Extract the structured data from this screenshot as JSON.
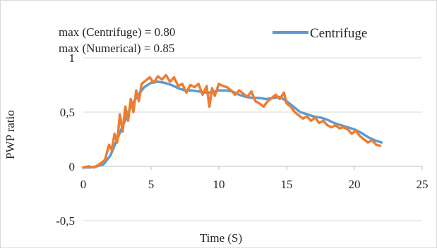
{
  "chart_data": {
    "type": "line",
    "title": "",
    "xlabel": "Time (S)",
    "ylabel": "PWP  ratio",
    "xlim": [
      0,
      25
    ],
    "ylim": [
      -0.5,
      1
    ],
    "xticks": [
      {
        "value": 0,
        "label": "0"
      },
      {
        "value": 5,
        "label": "5"
      },
      {
        "value": 10,
        "label": "10"
      },
      {
        "value": 15,
        "label": "15"
      },
      {
        "value": 20,
        "label": "20"
      },
      {
        "value": 25,
        "label": "25"
      }
    ],
    "yticks": [
      {
        "value": -0.5,
        "label": "-0,5"
      },
      {
        "value": 0,
        "label": "0"
      },
      {
        "value": 0.5,
        "label": "0,5"
      },
      {
        "value": 1,
        "label": "1"
      }
    ],
    "grid": {
      "horizontal": true,
      "vertical": false
    },
    "legend": {
      "position": "top-right",
      "entries": [
        "Centrifuge"
      ]
    },
    "annotations": [
      "max (Centrifuge) = 0.80",
      "max (Numerical) = 0.85"
    ],
    "series": [
      {
        "name": "Centrifuge",
        "color": "#5b9bd5",
        "x": [
          0,
          0.5,
          1,
          1.5,
          2,
          2.5,
          3,
          3.5,
          4,
          4.5,
          5,
          5.5,
          6,
          6.5,
          7,
          7.5,
          8,
          8.5,
          9,
          9.5,
          10,
          10.5,
          11,
          11.5,
          12,
          12.5,
          13,
          13.5,
          14,
          14.5,
          15,
          15.5,
          16,
          16.5,
          17,
          17.5,
          18,
          18.5,
          19,
          19.5,
          20,
          20.5,
          21,
          21.5,
          22
        ],
        "y": [
          -0.01,
          -0.01,
          0.0,
          0.02,
          0.1,
          0.25,
          0.4,
          0.55,
          0.65,
          0.73,
          0.77,
          0.78,
          0.77,
          0.75,
          0.72,
          0.7,
          0.7,
          0.69,
          0.68,
          0.68,
          0.7,
          0.7,
          0.69,
          0.66,
          0.64,
          0.63,
          0.63,
          0.62,
          0.63,
          0.64,
          0.6,
          0.55,
          0.5,
          0.48,
          0.46,
          0.45,
          0.43,
          0.4,
          0.38,
          0.36,
          0.34,
          0.31,
          0.27,
          0.24,
          0.22
        ]
      },
      {
        "name": "",
        "color": "#ed7d31",
        "x": [
          0,
          0.4,
          0.8,
          1.2,
          1.6,
          1.9,
          2.1,
          2.3,
          2.5,
          2.7,
          2.9,
          3.1,
          3.3,
          3.5,
          3.7,
          3.9,
          4.1,
          4.3,
          4.6,
          4.9,
          5.2,
          5.5,
          5.8,
          6.1,
          6.4,
          6.7,
          7.0,
          7.3,
          7.6,
          7.9,
          8.2,
          8.5,
          8.8,
          9.1,
          9.3,
          9.5,
          9.7,
          10.0,
          10.3,
          10.6,
          10.9,
          11.2,
          11.5,
          11.8,
          12.1,
          12.4,
          12.7,
          13.0,
          13.3,
          13.6,
          13.9,
          14.2,
          14.5,
          14.8,
          15.0,
          15.3,
          15.6,
          15.9,
          16.2,
          16.5,
          16.8,
          17.1,
          17.4,
          17.7,
          18.0,
          18.3,
          18.6,
          18.9,
          19.2,
          19.5,
          19.8,
          20.1,
          20.4,
          20.7,
          21.0,
          21.3,
          21.6,
          21.9
        ],
        "y": [
          -0.01,
          0.0,
          -0.01,
          0.02,
          0.06,
          0.2,
          0.15,
          0.3,
          0.22,
          0.48,
          0.32,
          0.55,
          0.42,
          0.62,
          0.5,
          0.7,
          0.6,
          0.76,
          0.79,
          0.82,
          0.77,
          0.83,
          0.8,
          0.84,
          0.78,
          0.82,
          0.74,
          0.76,
          0.68,
          0.75,
          0.73,
          0.76,
          0.66,
          0.74,
          0.55,
          0.72,
          0.65,
          0.76,
          0.74,
          0.73,
          0.7,
          0.66,
          0.7,
          0.67,
          0.64,
          0.69,
          0.6,
          0.58,
          0.55,
          0.6,
          0.63,
          0.66,
          0.62,
          0.68,
          0.58,
          0.55,
          0.5,
          0.47,
          0.44,
          0.46,
          0.42,
          0.45,
          0.4,
          0.42,
          0.38,
          0.36,
          0.38,
          0.35,
          0.36,
          0.34,
          0.3,
          0.33,
          0.28,
          0.25,
          0.22,
          0.24,
          0.2,
          0.19
        ]
      }
    ]
  }
}
